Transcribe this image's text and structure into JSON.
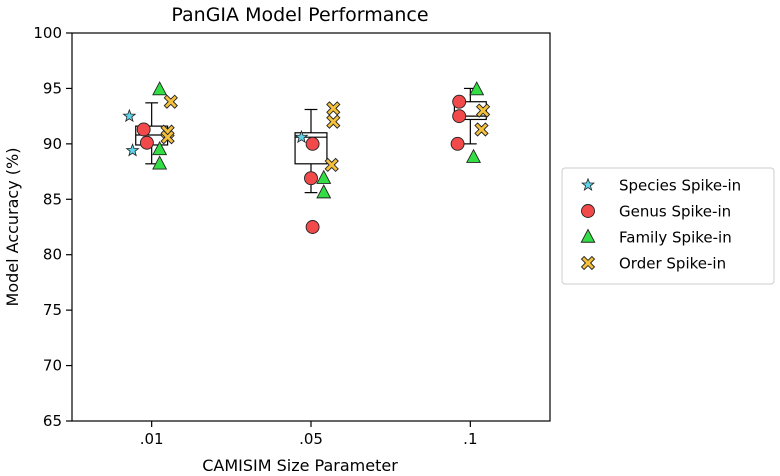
{
  "chart_data": {
    "type": "box",
    "title": "PanGIA Model Performance",
    "xlabel": "CAMISIM Size Parameter",
    "ylabel": "Model Accuracy (%)",
    "ylim": [
      65,
      100
    ],
    "yticks": [
      65,
      70,
      75,
      80,
      85,
      90,
      95,
      100
    ],
    "categories": [
      ".01",
      ".05",
      ".1"
    ],
    "boxes": [
      {
        "category": ".01",
        "whisker_low": 88.2,
        "q1": 89.9,
        "median": 90.8,
        "q3": 91.6,
        "whisker_high": 93.7
      },
      {
        "category": ".05",
        "whisker_low": 85.6,
        "q1": 88.2,
        "median": 90.6,
        "q3": 91.0,
        "whisker_high": 93.1
      },
      {
        "category": ".1",
        "whisker_low": 90.0,
        "q1": 92.2,
        "median": 92.5,
        "q3": 93.8,
        "whisker_high": 95.0
      }
    ],
    "series": [
      {
        "name": "Species Spike-in",
        "marker": "star",
        "color": "#5fd3e8",
        "points": [
          {
            "category": ".01",
            "offset": -0.14,
            "y": 92.5
          },
          {
            "category": ".01",
            "offset": -0.12,
            "y": 89.4
          },
          {
            "category": ".05",
            "offset": -0.06,
            "y": 90.6
          }
        ]
      },
      {
        "name": "Genus Spike-in",
        "marker": "circle",
        "color": "#f24a4a",
        "points": [
          {
            "category": ".01",
            "offset": -0.05,
            "y": 91.3
          },
          {
            "category": ".01",
            "offset": -0.03,
            "y": 90.1
          },
          {
            "category": ".05",
            "offset": 0.01,
            "y": 90.0
          },
          {
            "category": ".05",
            "offset": 0.0,
            "y": 86.9
          },
          {
            "category": ".05",
            "offset": 0.01,
            "y": 82.5
          },
          {
            "category": ".1",
            "offset": -0.07,
            "y": 93.8
          },
          {
            "category": ".1",
            "offset": -0.07,
            "y": 92.5
          },
          {
            "category": ".1",
            "offset": -0.08,
            "y": 90.0
          }
        ]
      },
      {
        "name": "Family Spike-in",
        "marker": "triangle",
        "color": "#33dd44",
        "points": [
          {
            "category": ".01",
            "offset": 0.05,
            "y": 94.9
          },
          {
            "category": ".01",
            "offset": 0.05,
            "y": 89.5
          },
          {
            "category": ".01",
            "offset": 0.05,
            "y": 88.2
          },
          {
            "category": ".05",
            "offset": 0.08,
            "y": 86.9
          },
          {
            "category": ".05",
            "offset": 0.08,
            "y": 85.6
          },
          {
            "category": ".1",
            "offset": 0.04,
            "y": 94.9
          },
          {
            "category": ".1",
            "offset": 0.02,
            "y": 88.8
          }
        ]
      },
      {
        "name": "Order Spike-in",
        "marker": "cross",
        "color": "#f5c13d",
        "points": [
          {
            "category": ".01",
            "offset": 0.12,
            "y": 93.8
          },
          {
            "category": ".01",
            "offset": 0.1,
            "y": 91.1
          },
          {
            "category": ".01",
            "offset": 0.1,
            "y": 90.6
          },
          {
            "category": ".05",
            "offset": 0.14,
            "y": 93.2
          },
          {
            "category": ".05",
            "offset": 0.14,
            "y": 92.0
          },
          {
            "category": ".05",
            "offset": 0.13,
            "y": 88.1
          },
          {
            "category": ".1",
            "offset": 0.08,
            "y": 93.0
          },
          {
            "category": ".1",
            "offset": 0.07,
            "y": 91.3
          }
        ]
      }
    ],
    "legend": {
      "placement": "right",
      "entries": [
        "Species Spike-in",
        "Genus Spike-in",
        "Family Spike-in",
        "Order Spike-in"
      ]
    }
  }
}
